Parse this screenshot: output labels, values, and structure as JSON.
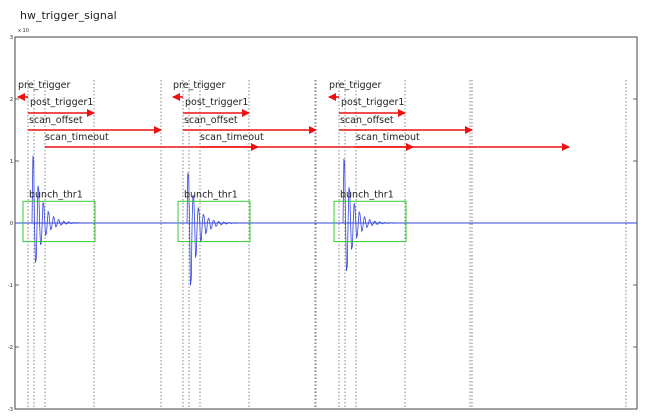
{
  "chart_data": {
    "type": "line",
    "title": "hw_trigger_signal",
    "y_exponent_label": "x 10",
    "ylim": [
      -3,
      3
    ],
    "yticks": [
      -3,
      -2,
      -1,
      0,
      1,
      2,
      3
    ],
    "ytick_labels": [
      "-3",
      "-2",
      "-1",
      "0",
      "1",
      "2",
      "3"
    ],
    "grid": false,
    "colors": {
      "signal": "#3344dd",
      "arrow": "#ee1111",
      "box": "#33cc33",
      "marker": "#555555"
    },
    "pulses": [
      {
        "labels": {
          "pre_trigger": "pre_trigger",
          "post_trigger": "post_trigger1",
          "scan_offset": "scan_offset",
          "scan_timeout": "scan_timeout",
          "bunch": "bunch_thr1"
        },
        "peak_max": 1.2,
        "peak_min": -0.95,
        "box_y": [
          -0.3,
          0.35
        ]
      },
      {
        "labels": {
          "pre_trigger": "pre_trigger",
          "post_trigger": "post_trigger1",
          "scan_offset": "scan_offset",
          "scan_timeout": "scan_timeout",
          "bunch": "bunch_thr1"
        },
        "peak_max": 0.9,
        "peak_min": -1.5,
        "box_y": [
          -0.3,
          0.35
        ]
      },
      {
        "labels": {
          "pre_trigger": "pre_trigger",
          "post_trigger": "post_trigger1",
          "scan_offset": "scan_offset",
          "scan_timeout": "scan_timeout",
          "bunch": "bunch_thr1"
        },
        "peak_max": 1.15,
        "peak_min": -1.15,
        "box_y": [
          -0.3,
          0.35
        ]
      }
    ]
  }
}
